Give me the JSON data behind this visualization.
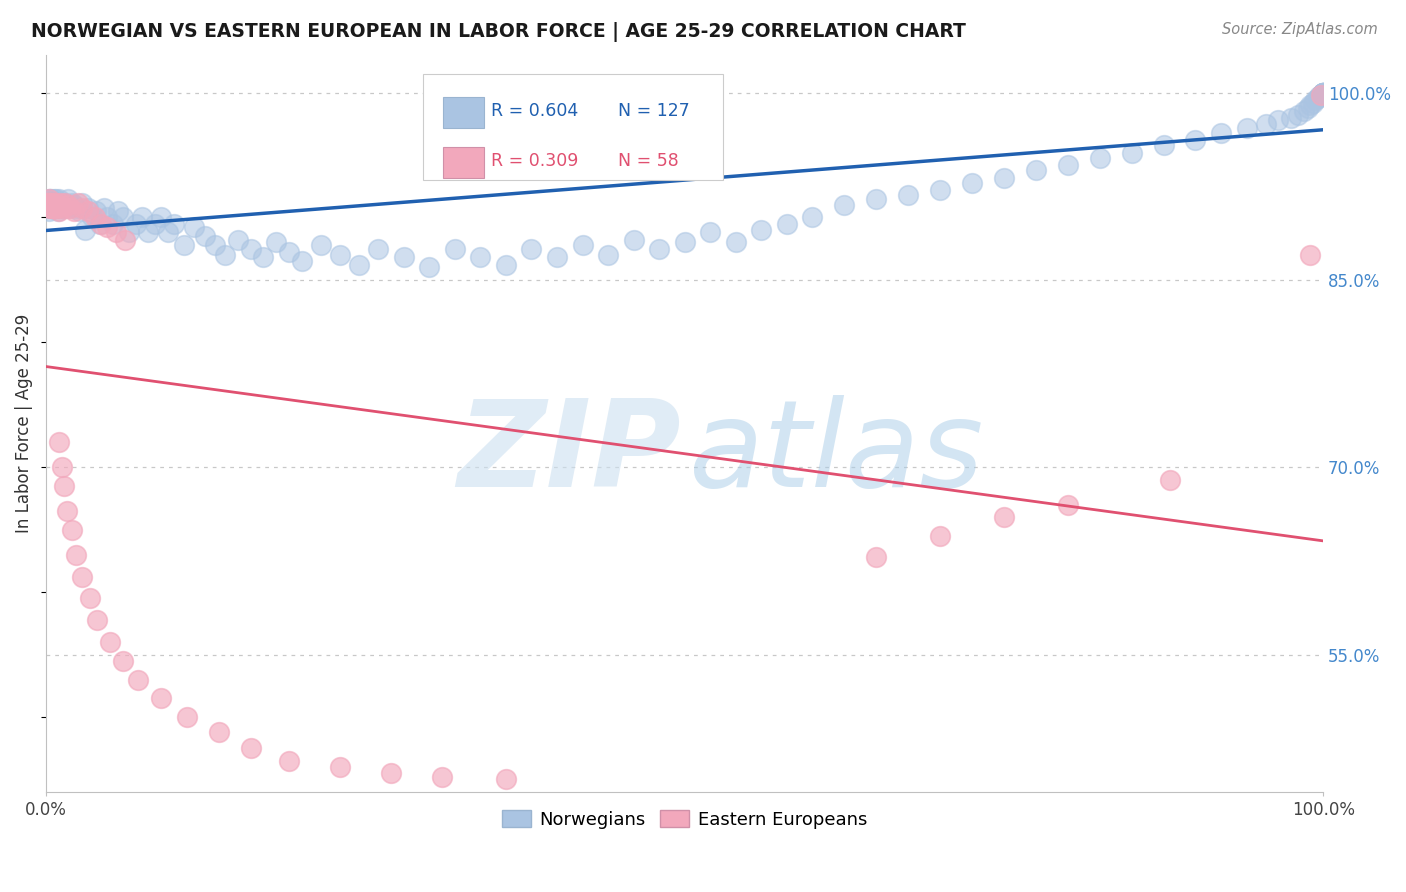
{
  "title": "NORWEGIAN VS EASTERN EUROPEAN IN LABOR FORCE | AGE 25-29 CORRELATION CHART",
  "source": "Source: ZipAtlas.com",
  "ylabel": "In Labor Force | Age 25-29",
  "xlim": [
    0,
    1.0
  ],
  "ylim": [
    0.44,
    1.03
  ],
  "yticks": [
    0.55,
    0.7,
    0.85,
    1.0
  ],
  "ytick_labels": [
    "55.0%",
    "70.0%",
    "85.0%",
    "100.0%"
  ],
  "legend_blue_r": "R = 0.604",
  "legend_blue_n": "N = 127",
  "legend_pink_r": "R = 0.309",
  "legend_pink_n": "N = 58",
  "blue_color": "#aac4e2",
  "pink_color": "#f2a8bc",
  "blue_line_color": "#2060b0",
  "pink_line_color": "#e05070",
  "background_color": "#ffffff",
  "nor_x": [
    0.001,
    0.001,
    0.001,
    0.002,
    0.002,
    0.002,
    0.002,
    0.003,
    0.003,
    0.003,
    0.003,
    0.004,
    0.004,
    0.004,
    0.005,
    0.005,
    0.005,
    0.006,
    0.006,
    0.007,
    0.007,
    0.008,
    0.008,
    0.009,
    0.009,
    0.01,
    0.01,
    0.011,
    0.012,
    0.013,
    0.014,
    0.015,
    0.016,
    0.017,
    0.018,
    0.02,
    0.022,
    0.024,
    0.026,
    0.028,
    0.03,
    0.033,
    0.036,
    0.039,
    0.042,
    0.045,
    0.048,
    0.052,
    0.056,
    0.06,
    0.065,
    0.07,
    0.075,
    0.08,
    0.085,
    0.09,
    0.095,
    0.1,
    0.108,
    0.116,
    0.124,
    0.132,
    0.14,
    0.15,
    0.16,
    0.17,
    0.18,
    0.19,
    0.2,
    0.215,
    0.23,
    0.245,
    0.26,
    0.28,
    0.3,
    0.32,
    0.34,
    0.36,
    0.38,
    0.4,
    0.42,
    0.44,
    0.46,
    0.48,
    0.5,
    0.52,
    0.54,
    0.56,
    0.58,
    0.6,
    0.625,
    0.65,
    0.675,
    0.7,
    0.725,
    0.75,
    0.775,
    0.8,
    0.825,
    0.85,
    0.875,
    0.9,
    0.92,
    0.94,
    0.955,
    0.965,
    0.975,
    0.98,
    0.985,
    0.988,
    0.99,
    0.992,
    0.994,
    0.996,
    0.997,
    0.998,
    0.999,
    0.999,
    1.0,
    1.0,
    1.0,
    1.0,
    1.0,
    1.0,
    1.0,
    1.0,
    1.0
  ],
  "nor_y": [
    0.908,
    0.91,
    0.912,
    0.905,
    0.91,
    0.912,
    0.915,
    0.908,
    0.912,
    0.915,
    0.91,
    0.908,
    0.912,
    0.915,
    0.91,
    0.912,
    0.908,
    0.915,
    0.91,
    0.912,
    0.908,
    0.915,
    0.91,
    0.912,
    0.905,
    0.915,
    0.91,
    0.908,
    0.912,
    0.91,
    0.908,
    0.912,
    0.91,
    0.915,
    0.908,
    0.912,
    0.91,
    0.908,
    0.905,
    0.912,
    0.89,
    0.908,
    0.9,
    0.905,
    0.895,
    0.908,
    0.9,
    0.895,
    0.905,
    0.9,
    0.888,
    0.895,
    0.9,
    0.888,
    0.895,
    0.9,
    0.888,
    0.895,
    0.878,
    0.892,
    0.885,
    0.878,
    0.87,
    0.882,
    0.875,
    0.868,
    0.88,
    0.872,
    0.865,
    0.878,
    0.87,
    0.862,
    0.875,
    0.868,
    0.86,
    0.875,
    0.868,
    0.862,
    0.875,
    0.868,
    0.878,
    0.87,
    0.882,
    0.875,
    0.88,
    0.888,
    0.88,
    0.89,
    0.895,
    0.9,
    0.91,
    0.915,
    0.918,
    0.922,
    0.928,
    0.932,
    0.938,
    0.942,
    0.948,
    0.952,
    0.958,
    0.962,
    0.968,
    0.972,
    0.975,
    0.978,
    0.98,
    0.982,
    0.985,
    0.988,
    0.99,
    0.992,
    0.994,
    0.996,
    0.997,
    0.998,
    0.999,
    0.999,
    1.0,
    1.0,
    1.0,
    1.0,
    1.0,
    1.0,
    1.0,
    1.0,
    1.0
  ],
  "east_x": [
    0.001,
    0.001,
    0.002,
    0.002,
    0.002,
    0.003,
    0.003,
    0.004,
    0.004,
    0.005,
    0.005,
    0.006,
    0.007,
    0.008,
    0.009,
    0.01,
    0.011,
    0.013,
    0.015,
    0.017,
    0.019,
    0.022,
    0.025,
    0.028,
    0.033,
    0.038,
    0.043,
    0.048,
    0.055,
    0.062,
    0.01,
    0.012,
    0.014,
    0.016,
    0.02,
    0.023,
    0.028,
    0.034,
    0.04,
    0.05,
    0.06,
    0.072,
    0.09,
    0.11,
    0.135,
    0.16,
    0.19,
    0.23,
    0.27,
    0.31,
    0.36,
    0.65,
    0.7,
    0.75,
    0.8,
    0.88,
    0.99,
    0.998
  ],
  "east_y": [
    0.912,
    0.912,
    0.91,
    0.915,
    0.908,
    0.912,
    0.91,
    0.912,
    0.908,
    0.912,
    0.908,
    0.91,
    0.908,
    0.912,
    0.908,
    0.905,
    0.912,
    0.908,
    0.912,
    0.91,
    0.908,
    0.905,
    0.912,
    0.908,
    0.905,
    0.9,
    0.895,
    0.892,
    0.888,
    0.882,
    0.72,
    0.7,
    0.685,
    0.665,
    0.65,
    0.63,
    0.612,
    0.595,
    0.578,
    0.56,
    0.545,
    0.53,
    0.515,
    0.5,
    0.488,
    0.475,
    0.465,
    0.46,
    0.455,
    0.452,
    0.45,
    0.628,
    0.645,
    0.66,
    0.67,
    0.69,
    0.87,
    0.998
  ]
}
